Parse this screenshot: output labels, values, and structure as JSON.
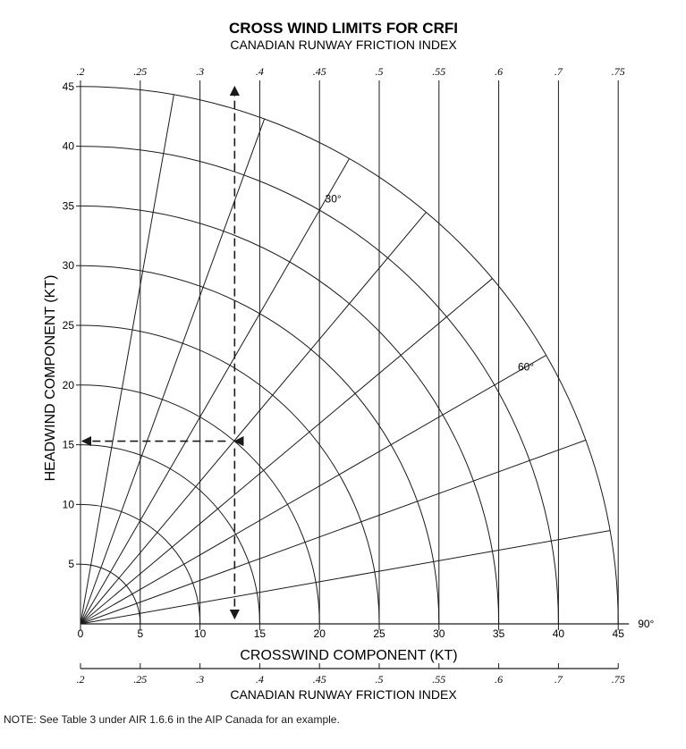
{
  "chart_data": {
    "type": "line",
    "title": "CROSS WIND LIMITS FOR CRFI",
    "subtitle": "CANADIAN RUNWAY FRICTION INDEX",
    "xlabel": "CROSSWIND COMPONENT (KT)",
    "ylabel": "HEADWIND COMPONENT (KT)",
    "secondary_xlabel": "CANADIAN RUNWAY FRICTION INDEX",
    "xlim": [
      0,
      45
    ],
    "ylim": [
      0,
      45
    ],
    "x_ticks": [
      "0",
      "5",
      "10",
      "15",
      "20",
      "25",
      "30",
      "35",
      "40",
      "45"
    ],
    "y_ticks": [
      "5",
      "10",
      "15",
      "20",
      "25",
      "30",
      "35",
      "40",
      "45"
    ],
    "crfi_ticks": [
      {
        "x": 0,
        "label": ".2"
      },
      {
        "x": 5,
        "label": ".25"
      },
      {
        "x": 10,
        "label": ".3"
      },
      {
        "x": 15,
        "label": ".4"
      },
      {
        "x": 20,
        "label": ".45"
      },
      {
        "x": 25,
        "label": ".5"
      },
      {
        "x": 30,
        "label": ".55"
      },
      {
        "x": 35,
        "label": ".6"
      },
      {
        "x": 40,
        "label": ".7"
      },
      {
        "x": 45,
        "label": ".75"
      }
    ],
    "wind_speed_arcs_kt": [
      5,
      10,
      15,
      20,
      25,
      30,
      35,
      40,
      45
    ],
    "angle_lines_deg": [
      10,
      20,
      30,
      40,
      50,
      60,
      70,
      80,
      90
    ],
    "angle_labels": [
      {
        "deg": 30,
        "label": "30°"
      },
      {
        "deg": 60,
        "label": "60°"
      },
      {
        "deg": 90,
        "label": "90°"
      }
    ],
    "example": {
      "wind_speed_kt": 20,
      "angle_deg": 40,
      "headwind_kt": 15.3,
      "crosswind_kt": 12.9
    },
    "grid": true
  },
  "note": "NOTE: See Table 3 under AIR 1.6.6 in the AIP Canada for an example."
}
